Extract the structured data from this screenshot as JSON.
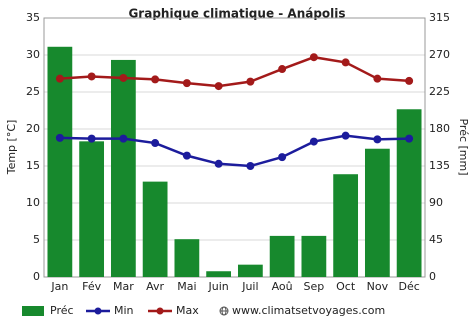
{
  "chart_data": {
    "type": "climate",
    "title": "Graphique climatique - Anápolis",
    "ylabel": "Temp [°C]",
    "y2label": "Préc [mm]",
    "source": "www.climatsetvoyages.com",
    "categories": [
      "Jan",
      "Fév",
      "Mar",
      "Avr",
      "Mai",
      "Juin",
      "Juil",
      "Aoû",
      "Sep",
      "Oct",
      "Nov",
      "Déc"
    ],
    "ylim": [
      0,
      35
    ],
    "yticks": [
      0,
      5,
      10,
      15,
      20,
      25,
      30,
      35
    ],
    "y2lim": [
      0,
      315
    ],
    "y2ticks": [
      0,
      45,
      90,
      135,
      180,
      225,
      270,
      315
    ],
    "grid": true,
    "series": [
      {
        "name": "Préc",
        "kind": "bar",
        "axis": "y2",
        "color": "#17892d",
        "values": [
          280,
          165,
          264,
          116,
          46,
          7,
          15,
          50,
          50,
          125,
          156,
          204
        ]
      },
      {
        "name": "Min",
        "kind": "line",
        "color": "#1c1c9c",
        "values": [
          18.8,
          18.7,
          18.7,
          18.1,
          16.4,
          15.3,
          15.0,
          16.2,
          18.3,
          19.1,
          18.6,
          18.7
        ]
      },
      {
        "name": "Max",
        "kind": "line",
        "color": "#a31a1a",
        "values": [
          26.8,
          27.1,
          26.9,
          26.7,
          26.2,
          25.8,
          26.4,
          28.1,
          29.7,
          29.0,
          26.8,
          26.5
        ]
      }
    ]
  }
}
